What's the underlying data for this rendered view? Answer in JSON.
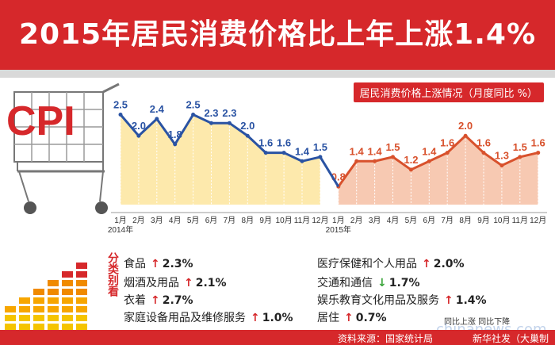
{
  "title": "2015年居民消费价格比上年上涨1.4%",
  "legend_text": "居民消费价格上涨情况（月度同比 %）",
  "logo_text": "CPI",
  "year_labels": {
    "y2014": "2014年",
    "y2015": "2015年"
  },
  "colors": {
    "red": "#d6282b",
    "orange_fill": "#f6c3aa",
    "yellow_fill": "#fde7a3",
    "line_2014": "#2a53a3",
    "line_2015": "#d8512c",
    "up": "#d6282b",
    "down": "#3aa43a"
  },
  "chart_data": {
    "type": "line",
    "title": "居民消费价格上涨情况（月度同比 %）",
    "categories": [
      "1月",
      "2月",
      "3月",
      "4月",
      "5月",
      "6月",
      "7月",
      "8月",
      "9月",
      "10月",
      "11月",
      "12月",
      "1月",
      "2月",
      "3月",
      "4月",
      "5月",
      "6月",
      "7月",
      "8月",
      "9月",
      "10月",
      "11月",
      "12月"
    ],
    "series": [
      {
        "values": [
          2.5,
          2.0,
          2.4,
          1.8,
          2.5,
          2.3,
          2.3,
          2.0,
          1.6,
          1.6,
          1.4,
          1.5,
          null,
          null,
          null,
          null,
          null,
          null,
          null,
          null,
          null,
          null,
          null,
          null
        ]
      },
      {
        "values": [
          null,
          null,
          null,
          null,
          null,
          null,
          null,
          null,
          null,
          null,
          null,
          null,
          0.8,
          1.4,
          1.4,
          1.5,
          1.2,
          1.4,
          1.6,
          2.0,
          1.6,
          1.3,
          1.5,
          1.6
        ]
      }
    ],
    "ylim": [
      0,
      2.8
    ],
    "x_groups": [
      "2014年",
      "2015年"
    ]
  },
  "categories_section": {
    "vertical_label": "分类别看",
    "items": [
      {
        "name": "食品",
        "dir": "up",
        "value": "2.3%"
      },
      {
        "name": "烟酒及用品",
        "dir": "up",
        "value": "2.1%"
      },
      {
        "name": "衣着",
        "dir": "up",
        "value": "2.7%"
      },
      {
        "name": "家庭设备用品及维修服务",
        "dir": "up",
        "value": "1.0%"
      },
      {
        "name": "医疗保健和个人用品",
        "dir": "up",
        "value": "2.0%"
      },
      {
        "name": "交通和通信",
        "dir": "down",
        "value": "1.7%"
      },
      {
        "name": "娱乐教育文化用品及服务",
        "dir": "up",
        "value": "1.4%"
      },
      {
        "name": "居住",
        "dir": "up",
        "value": "0.7%"
      }
    ]
  },
  "legend_updown": "同比上涨 同比下降",
  "source": "资料来源：国家统计局",
  "agency": "新华社发（大巢制图）",
  "watermark": "chinanews.com"
}
